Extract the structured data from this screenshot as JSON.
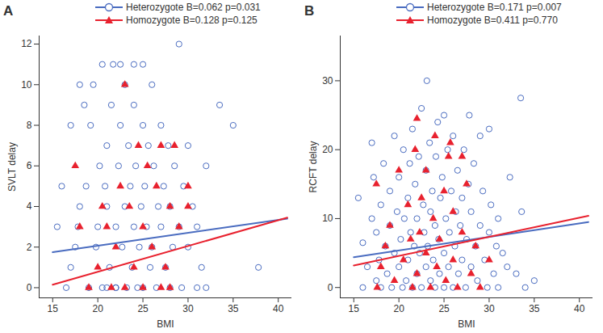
{
  "chart_data": [
    {
      "type": "scatter",
      "title": "A",
      "xlabel": "BMI",
      "ylabel": "SVLT delay",
      "xlim": [
        13.5,
        41.5
      ],
      "xticks": [
        15,
        20,
        25,
        30,
        35,
        40
      ],
      "ylim": [
        -0.5,
        12.4
      ],
      "yticks": [
        0,
        2,
        4,
        6,
        8,
        10,
        12
      ],
      "series": [
        {
          "name": "Heterozygote B=0.062 p=0.031",
          "color": "#4a6cc0",
          "marker": "circle-open",
          "x": [
            16.5,
            17,
            17.5,
            17.8,
            18,
            18.5,
            18.7,
            19,
            19.2,
            19.5,
            19.8,
            20,
            20.2,
            20.5,
            20.8,
            21,
            21,
            21.3,
            21.5,
            21.7,
            22,
            22,
            22.3,
            22.5,
            22.7,
            23,
            23,
            23.2,
            23.4,
            23.6,
            23.8,
            24,
            24,
            24.2,
            24.4,
            24.6,
            24.8,
            25,
            25,
            25.2,
            25.4,
            25.6,
            25.8,
            26,
            26,
            26.2,
            26.5,
            26.7,
            27,
            27,
            27.3,
            27.5,
            27.8,
            28,
            28,
            28.3,
            28.5,
            29,
            29,
            29.3,
            29.5,
            30,
            30,
            30.5,
            31,
            31,
            31.5,
            32,
            32,
            33.5,
            35,
            37.8,
            15.5,
            16,
            17,
            18,
            20.5,
            22.5,
            24,
            25,
            21,
            22
          ],
          "values": [
            0,
            1,
            2,
            3,
            4,
            9,
            5,
            0,
            8,
            10,
            2,
            3,
            6,
            0,
            5,
            7,
            4,
            1,
            9,
            11,
            0,
            3,
            6,
            8,
            2,
            4,
            10,
            0,
            7,
            5,
            1,
            3,
            9,
            6,
            0,
            2,
            4,
            8,
            0,
            5,
            3,
            7,
            1,
            10,
            2,
            6,
            0,
            4,
            3,
            8,
            5,
            1,
            7,
            0,
            4,
            2,
            6,
            12,
            3,
            0,
            5,
            2,
            7,
            4,
            0,
            3,
            1,
            0,
            6,
            9,
            8,
            1,
            3,
            5,
            8,
            10,
            11,
            11,
            11,
            11,
            0,
            0
          ],
          "fit": {
            "x": [
              15,
              41
            ],
            "values": [
              1.75,
              3.4
            ]
          }
        },
        {
          "name": "Homozygote B=0.128 p=0.125",
          "color": "#e8212e",
          "marker": "triangle",
          "x": [
            17.5,
            18,
            19,
            20,
            20.5,
            21,
            21.5,
            22,
            22.5,
            23,
            23,
            23.5,
            24,
            24.5,
            25,
            25,
            25.5,
            26,
            26.5,
            27,
            27,
            27.5,
            28,
            28.5,
            29,
            30,
            30,
            28
          ],
          "values": [
            6,
            3,
            0,
            1,
            4,
            3,
            0,
            2,
            5,
            10,
            0,
            4,
            1,
            7,
            3,
            0,
            6,
            2,
            5,
            7,
            0,
            1,
            4,
            7,
            3,
            5,
            4,
            0
          ],
          "fit": {
            "x": [
              15,
              41
            ],
            "values": [
              0.15,
              3.45
            ]
          }
        }
      ]
    },
    {
      "type": "scatter",
      "title": "B",
      "xlabel": "BMI",
      "ylabel": "RCFT delay",
      "xlim": [
        13.5,
        41.5
      ],
      "xticks": [
        15,
        20,
        25,
        30,
        35,
        40
      ],
      "ylim": [
        -1.5,
        36.5
      ],
      "yticks": [
        0,
        10,
        20,
        30
      ],
      "series": [
        {
          "name": "Heterozygote B=0.171 p=0.007",
          "color": "#4a6cc0",
          "marker": "circle-open",
          "x": [
            15.5,
            16,
            16,
            16.5,
            17,
            17,
            17.2,
            17.5,
            17.5,
            17.8,
            18,
            18,
            18.3,
            18.5,
            18.7,
            19,
            19,
            19.2,
            19.5,
            19.5,
            19.8,
            20,
            20,
            20.2,
            20.4,
            20.5,
            20.6,
            20.8,
            21,
            21,
            21.2,
            21.3,
            21.5,
            21.5,
            21.7,
            21.8,
            22,
            22,
            22.2,
            22.3,
            22.5,
            22.5,
            22.7,
            22.8,
            23,
            23,
            23.1,
            23.2,
            23.4,
            23.5,
            23.5,
            23.7,
            23.8,
            24,
            24,
            24.1,
            24.3,
            24.4,
            24.5,
            24.6,
            24.8,
            25,
            25,
            25,
            25.2,
            25.4,
            25.5,
            25.6,
            25.8,
            26,
            26,
            26.2,
            26.3,
            26.5,
            26.6,
            26.8,
            27,
            27,
            27.2,
            27.4,
            27.5,
            27.7,
            27.8,
            28,
            28,
            28.3,
            28.5,
            28.7,
            29,
            29,
            29.3,
            29.5,
            29.8,
            30,
            30,
            30.2,
            30.5,
            30.8,
            31,
            31,
            31.5,
            32,
            32.3,
            33,
            33.5,
            33.6,
            34,
            35
          ],
          "values": [
            13,
            0,
            6.5,
            3,
            10,
            21,
            16,
            1,
            8,
            4,
            12,
            0,
            18,
            6,
            2,
            14,
            9,
            0,
            22,
            5,
            11,
            3,
            16,
            7,
            0,
            20,
            10,
            1,
            13,
            4,
            18,
            8,
            0,
            23,
            6,
            15,
            2,
            10,
            19,
            5,
            26,
            0,
            12,
            8,
            3,
            17,
            30,
            6,
            21,
            1,
            11,
            14,
            4,
            0,
            9,
            19,
            24,
            7,
            2,
            13,
            16,
            0,
            5,
            25,
            10,
            20,
            3,
            8,
            14,
            0,
            22,
            6,
            11,
            17,
            2,
            9,
            4,
            13,
            20,
            0,
            7,
            15,
            25,
            3,
            11,
            18,
            6,
            1,
            9,
            22,
            14,
            4,
            0,
            8,
            23,
            12,
            2,
            6,
            10,
            0,
            5,
            3,
            16,
            2,
            27.5,
            11,
            0,
            1
          ],
          "fit": {
            "x": [
              15,
              41
            ],
            "values": [
              4.4,
              9.5
            ]
          }
        },
        {
          "name": "Homozygote B=0.411 p=0.770",
          "color": "#e8212e",
          "marker": "triangle",
          "x": [
            17.5,
            17.6,
            18,
            18.5,
            19,
            19.5,
            20,
            20.5,
            21,
            21.3,
            21.5,
            21.8,
            22,
            22,
            22.3,
            22.5,
            23,
            23,
            23.5,
            23.8,
            24,
            24.2,
            24.5,
            25,
            25.2,
            25.5,
            26,
            26,
            26.5,
            27,
            27,
            27.5,
            28,
            28.5,
            29,
            30,
            25.7
          ],
          "values": [
            15,
            0,
            3,
            6,
            9,
            1,
            17,
            4,
            12,
            7,
            0,
            20,
            24.5,
            2,
            8,
            13,
            5,
            17,
            0,
            10,
            22,
            3,
            7,
            14,
            1,
            19,
            4,
            11,
            0,
            8,
            19,
            15,
            2,
            6,
            0,
            4,
            21
          ],
          "fit": {
            "x": [
              15,
              41
            ],
            "values": [
              3.2,
              10.4
            ]
          }
        }
      ]
    }
  ]
}
